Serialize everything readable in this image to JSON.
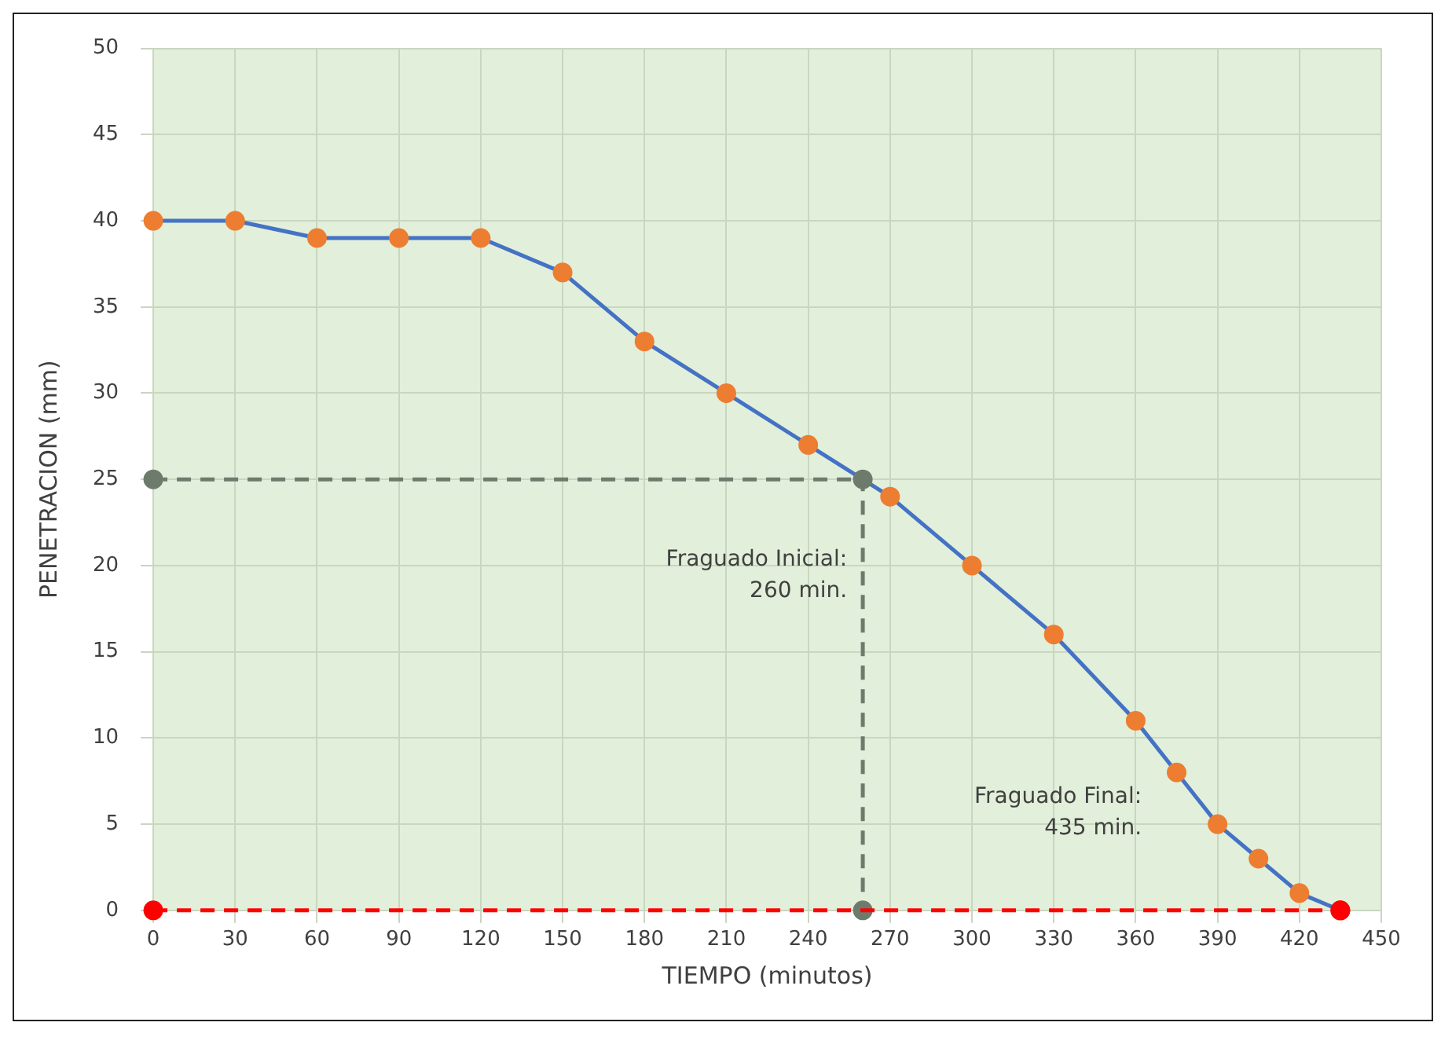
{
  "chart_data": {
    "type": "line",
    "xlabel": "TIEMPO (minutos)",
    "ylabel": "PENETRACION (mm)",
    "xlim": [
      0,
      450
    ],
    "xticks": [
      0,
      30,
      60,
      90,
      120,
      150,
      180,
      210,
      240,
      270,
      300,
      330,
      360,
      390,
      420,
      450
    ],
    "ylim": [
      0,
      50
    ],
    "yticks": [
      0,
      5,
      10,
      15,
      20,
      25,
      30,
      35,
      40,
      45,
      50
    ],
    "grid": true,
    "legend": false,
    "series": [
      {
        "color": "#4472c4",
        "marker": "circle",
        "line_style": "solid",
        "colors": [
          "#ed7d31",
          "#ed7d31",
          "#ed7d31",
          "#ed7d31",
          "#ed7d31",
          "#ed7d31",
          "#ed7d31",
          "#ed7d31",
          "#ed7d31",
          "#ed7d31",
          "#ed7d31",
          "#ed7d31",
          "#ed7d31",
          "#ed7d31",
          "#ed7d31",
          "#ed7d31",
          "#ed7d31",
          "#ff0000"
        ],
        "x": [
          0,
          30,
          60,
          90,
          120,
          150,
          180,
          210,
          240,
          270,
          300,
          330,
          360,
          375,
          390,
          405,
          420,
          435
        ],
        "values": [
          40,
          40,
          39,
          39,
          39,
          37,
          33,
          30,
          27,
          24,
          20,
          16,
          11,
          8,
          5,
          3,
          1,
          0
        ]
      },
      {
        "color": "#6d7b6d",
        "marker": "circle",
        "line_style": "dashed",
        "x": [
          0,
          260,
          260
        ],
        "values": [
          25,
          25,
          0
        ]
      },
      {
        "color": "#ff0000",
        "marker": "circle",
        "line_style": "dashed",
        "x": [
          0,
          435
        ],
        "values": [
          0,
          0
        ]
      }
    ],
    "annotations": [
      "Fraguado Inicial:\n260 min.",
      "Fraguado Final:\n435 min."
    ]
  }
}
